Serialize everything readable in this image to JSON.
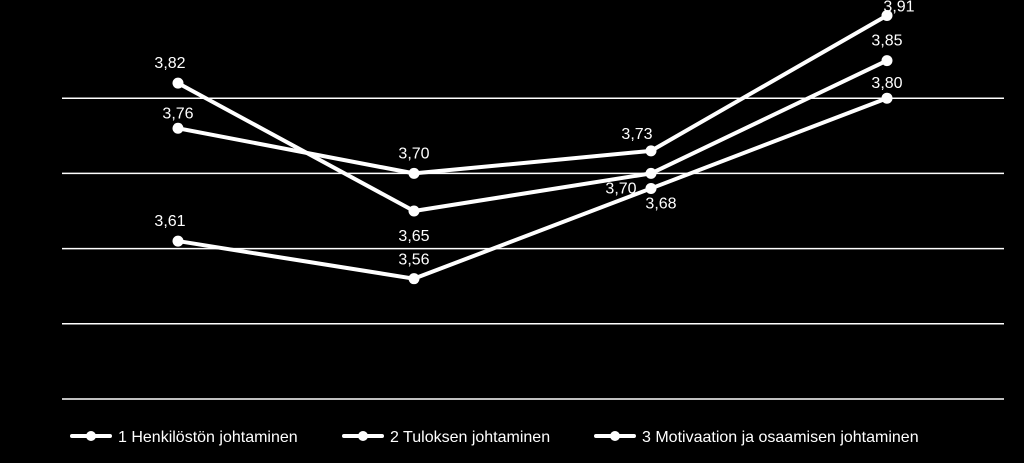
{
  "chart_data": {
    "type": "line",
    "categories": [
      "",
      "",
      "",
      ""
    ],
    "ylim": [
      3.4,
      3.9
    ],
    "yticks": [
      3.4,
      3.5,
      3.6,
      3.7,
      3.8,
      3.9
    ],
    "grid": true,
    "legend_position": "bottom",
    "colors": {
      "background": "#000000",
      "line": "#ffffff",
      "grid": "#ffffff"
    },
    "series": [
      {
        "name": "1  Henkilöstön johtaminen",
        "values": [
          3.76,
          3.7,
          3.73,
          3.91
        ],
        "labels": [
          "3,76",
          "3,70",
          "3,73",
          "3,91"
        ]
      },
      {
        "name": "2  Tuloksen johtaminen",
        "values": [
          3.82,
          3.65,
          3.7,
          3.85
        ],
        "labels": [
          "3,82",
          "3,65",
          "3,70",
          "3,85"
        ]
      },
      {
        "name": "3  Motivaation ja osaamisen johtaminen",
        "values": [
          3.61,
          3.56,
          3.68,
          3.8
        ],
        "labels": [
          "3,61",
          "3,56",
          "3,68",
          "3,80"
        ]
      }
    ]
  }
}
